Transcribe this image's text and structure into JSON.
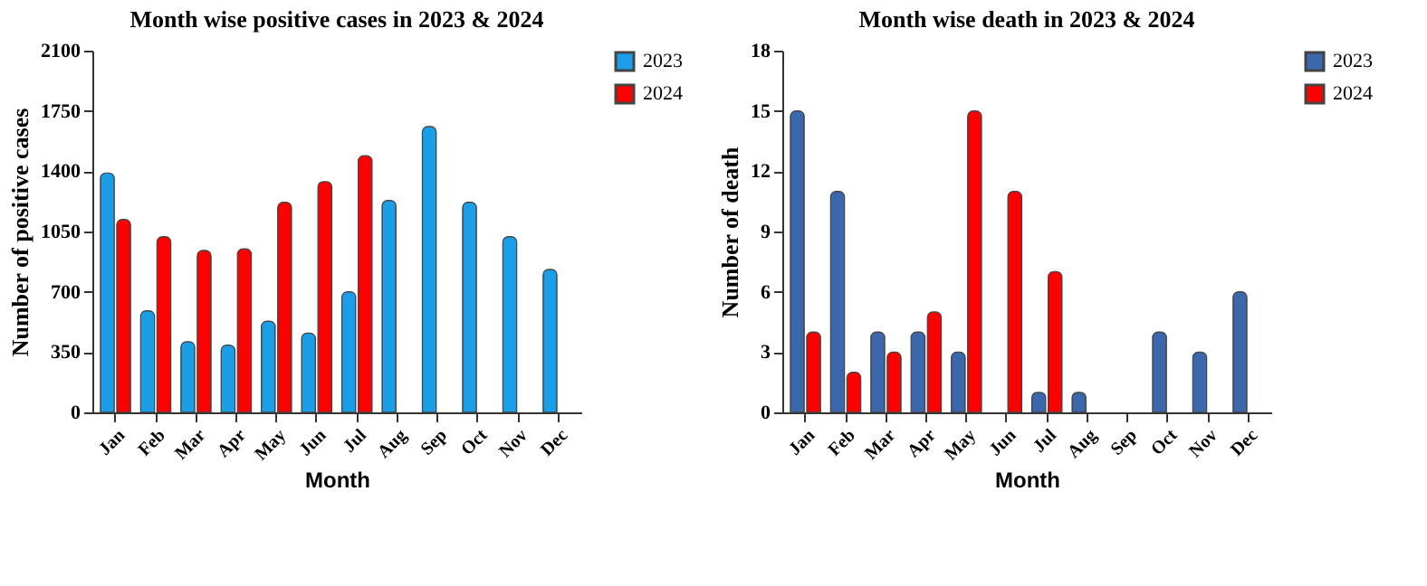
{
  "chart_data": [
    {
      "type": "bar",
      "title": "Month wise positive cases in 2023 & 2024",
      "xlabel": "Month",
      "ylabel": "Number of positive cases",
      "categories": [
        "Jan",
        "Feb",
        "Mar",
        "Apr",
        "May",
        "Jun",
        "Jul",
        "Aug",
        "Sep",
        "Oct",
        "Nov",
        "Dec"
      ],
      "series": [
        {
          "name": "2023",
          "color": "#1a9ee8",
          "values": [
            1390,
            590,
            410,
            390,
            530,
            460,
            700,
            1230,
            1660,
            1220,
            1020,
            830
          ]
        },
        {
          "name": "2024",
          "color": "#ff0000",
          "values": [
            1120,
            1020,
            940,
            950,
            1220,
            1340,
            1490,
            null,
            null,
            null,
            null,
            null
          ]
        }
      ],
      "ylim": [
        0,
        2100
      ],
      "yticks": [
        0,
        350,
        700,
        1050,
        1400,
        1750,
        2100
      ],
      "grid": false,
      "legend": "top right"
    },
    {
      "type": "bar",
      "title": "Month wise death in 2023 & 2024",
      "xlabel": "Month",
      "ylabel": "Number of death",
      "categories": [
        "Jan",
        "Feb",
        "Mar",
        "Apr",
        "May",
        "Jun",
        "Jul",
        "Aug",
        "Sep",
        "Oct",
        "Nov",
        "Dec"
      ],
      "series": [
        {
          "name": "2023",
          "color": "#3b67ad",
          "values": [
            15,
            11,
            4,
            4,
            3,
            null,
            1,
            1,
            null,
            4,
            3,
            6
          ]
        },
        {
          "name": "2024",
          "color": "#ff0000",
          "values": [
            4,
            2,
            3,
            5,
            15,
            11,
            7,
            null,
            null,
            null,
            null,
            null
          ]
        }
      ],
      "ylim": [
        0,
        18
      ],
      "yticks": [
        0,
        3,
        6,
        9,
        12,
        15,
        18
      ],
      "grid": false,
      "legend": "top right"
    }
  ]
}
